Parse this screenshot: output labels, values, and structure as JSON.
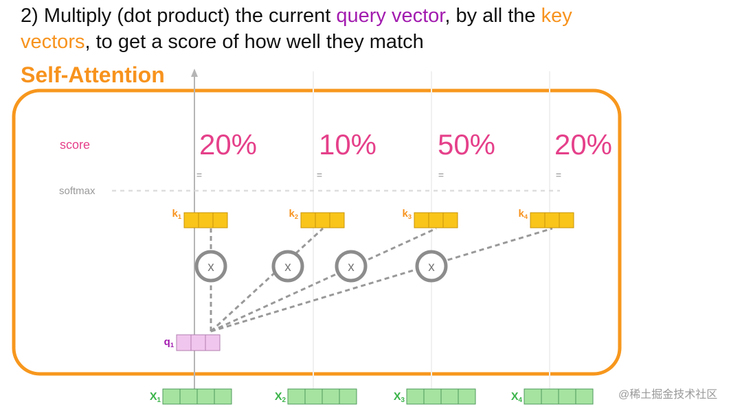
{
  "header": {
    "parts": [
      "2) Multiply (dot product) the current ",
      "query vector",
      ", by all the ",
      "key",
      "vectors",
      ", to get a score of how well they match"
    ]
  },
  "title": "Self-Attention",
  "score_label": "score",
  "softmax_label": "softmax",
  "scores": [
    "20%",
    "10%",
    "50%",
    "20%"
  ],
  "equals": [
    "=",
    "=",
    "=",
    "="
  ],
  "multiply": [
    "x",
    "x",
    "x",
    "x"
  ],
  "keys": [
    {
      "letter": "k",
      "index": "1"
    },
    {
      "letter": "k",
      "index": "2"
    },
    {
      "letter": "k",
      "index": "3"
    },
    {
      "letter": "k",
      "index": "4"
    }
  ],
  "query": {
    "letter": "q",
    "index": "1"
  },
  "inputs": [
    {
      "letter": "X",
      "index": "1"
    },
    {
      "letter": "X",
      "index": "2"
    },
    {
      "letter": "X",
      "index": "3"
    },
    {
      "letter": "X",
      "index": "4"
    }
  ],
  "watermark": "@稀土掘金技术社区"
}
